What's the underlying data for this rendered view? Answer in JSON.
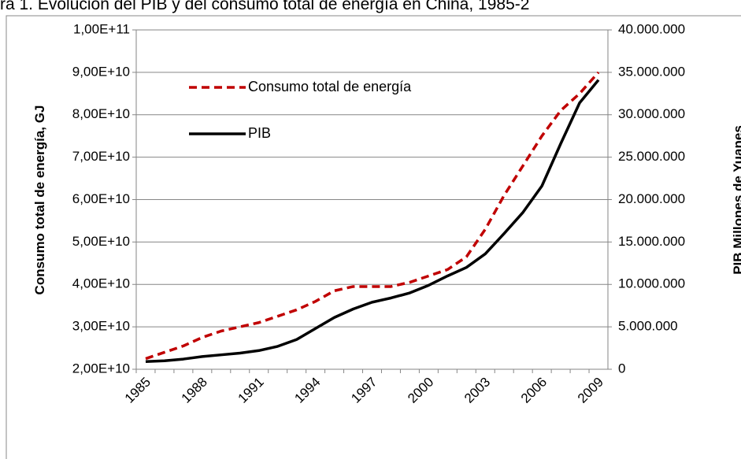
{
  "chart_data": {
    "type": "line",
    "title": "ra 1. Evolución del PIB y del consumo total de energía en China, 1985-2",
    "ylabel": "Consumo total de energía, GJ",
    "y2label": "PIB Millones de Yuanes",
    "categories": [
      "1985",
      null,
      null,
      "1988",
      null,
      null,
      "1991",
      null,
      null,
      "1994",
      null,
      null,
      "1997",
      null,
      null,
      "2000",
      null,
      null,
      "2003",
      null,
      null,
      "2006",
      null,
      null,
      "2009"
    ],
    "series": [
      {
        "name": "Consumo total de energía",
        "color": "#c00000",
        "dash": true,
        "values": [
          22500000000.0,
          24000000000.0,
          25500000000.0,
          27500000000.0,
          29000000000.0,
          30000000000.0,
          31000000000.0,
          32500000000.0,
          34000000000.0,
          36000000000.0,
          38500000000.0,
          39500000000.0,
          39500000000.0,
          39500000000.0,
          40500000000.0,
          42000000000.0,
          43500000000.0,
          46500000000.0,
          53000000000.0,
          61000000000.0,
          68000000000.0,
          75000000000.0,
          81000000000.0,
          85000000000.0,
          90000000000.0
        ]
      },
      {
        "name": "PIB",
        "color": "#000000",
        "dash": false,
        "axis": "y2",
        "values": [
          900000,
          1000000,
          1200000,
          1500000,
          1700000,
          1900000,
          2200000,
          2700000,
          3500000,
          4800000,
          6100000,
          7100000,
          7900000,
          8400000,
          9000000,
          9900000,
          11000000,
          12000000,
          13600000,
          16000000,
          18500000,
          21600000,
          26600000,
          31400000,
          34100000
        ]
      }
    ],
    "ylim": [
      20000000000.0,
      100000000000.0
    ],
    "yticks": [
      {
        "value": 20000000000.0,
        "label": "2,00E+10"
      },
      {
        "value": 30000000000.0,
        "label": "3,00E+10"
      },
      {
        "value": 40000000000.0,
        "label": "4,00E+10"
      },
      {
        "value": 50000000000.0,
        "label": "5,00E+10"
      },
      {
        "value": 60000000000.0,
        "label": "6,00E+10"
      },
      {
        "value": 70000000000.0,
        "label": "7,00E+10"
      },
      {
        "value": 80000000000.0,
        "label": "8,00E+10"
      },
      {
        "value": 90000000000.0,
        "label": "9,00E+10"
      },
      {
        "value": 100000000000.0,
        "label": "1,00E+11"
      }
    ],
    "y2lim": [
      0,
      40000000
    ],
    "y2ticks": [
      0,
      {
        "value": 5000000,
        "label": "5.000.000"
      },
      {
        "value": 10000000,
        "label": "10.000.000"
      },
      {
        "value": 15000000,
        "label": "15.000.000"
      },
      {
        "value": 20000000,
        "label": "20.000.000"
      },
      {
        "value": 25000000,
        "label": "25.000.000"
      },
      {
        "value": 30000000,
        "label": "30.000.000"
      },
      {
        "value": 35000000,
        "label": "35.000.000"
      },
      {
        "value": 40000000,
        "label": "40.000.000"
      }
    ],
    "grid": true
  }
}
